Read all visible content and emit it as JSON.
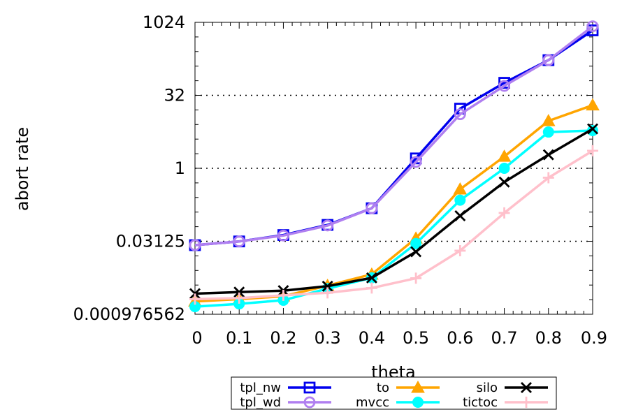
{
  "chart_data": {
    "type": "line",
    "xlabel": "theta",
    "ylabel": "abort rate",
    "x": [
      0,
      0.1,
      0.2,
      0.3,
      0.4,
      0.5,
      0.6,
      0.7,
      0.8,
      0.9
    ],
    "x_tick_labels": [
      "0",
      "0.1",
      "0.2",
      "0.3",
      "0.4",
      "0.5",
      "0.6",
      "0.7",
      "0.8",
      "0.9"
    ],
    "xlim": [
      0,
      0.9
    ],
    "y_scale": "log2",
    "ylim": [
      0.000976562,
      1024
    ],
    "y_ticks": [
      0.000976562,
      0.03125,
      1,
      32,
      1024
    ],
    "y_tick_labels": [
      "0.000976562",
      "0.03125",
      "1",
      "32",
      "1024"
    ],
    "grid": "dotted horizontal lines at major y ticks",
    "legend_position": "bottom, below plot",
    "series": [
      {
        "name": "tpl_nw",
        "color": "#0000ee",
        "marker": "square",
        "values": [
          0.026,
          0.031,
          0.042,
          0.068,
          0.15,
          1.6,
          17,
          58,
          170,
          700
        ]
      },
      {
        "name": "tpl_wd",
        "color": "#b07ff0",
        "marker": "circle",
        "values": [
          0.026,
          0.031,
          0.041,
          0.066,
          0.15,
          1.35,
          13,
          50,
          170,
          850
        ]
      },
      {
        "name": "to",
        "color": "#ffa500",
        "marker": "triangle",
        "values": [
          0.0018,
          0.002,
          0.0023,
          0.0038,
          0.0065,
          0.036,
          0.37,
          1.75,
          9.5,
          20
        ]
      },
      {
        "name": "mvcc",
        "color": "#00ffff",
        "marker": "filled-circle",
        "values": [
          0.0014,
          0.0016,
          0.0019,
          0.0033,
          0.0055,
          0.028,
          0.22,
          1.0,
          5.6,
          6
        ]
      },
      {
        "name": "silo",
        "color": "#000000",
        "marker": "x",
        "values": [
          0.0026,
          0.0028,
          0.003,
          0.0037,
          0.0055,
          0.019,
          0.105,
          0.52,
          1.9,
          6.5
        ]
      },
      {
        "name": "tictoc",
        "color": "#ffc0cb",
        "marker": "plus",
        "values": [
          0.002,
          0.0021,
          0.0024,
          0.0027,
          0.0034,
          0.0054,
          0.02,
          0.12,
          0.64,
          2.3
        ]
      }
    ]
  },
  "legend": {
    "tpl_nw": "tpl_nw",
    "tpl_wd": "tpl_wd",
    "to": "to",
    "mvcc": "mvcc",
    "silo": "silo",
    "tictoc": "tictoc"
  }
}
